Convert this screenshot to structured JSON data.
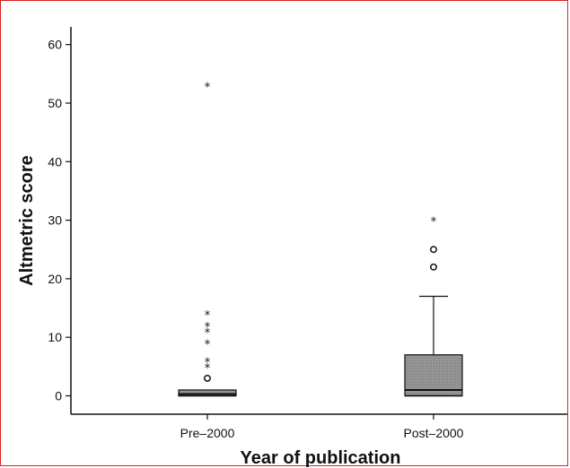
{
  "chart_data": {
    "type": "boxplot",
    "xlabel": "Year of publication",
    "ylabel": "Altmetric score",
    "ylim": [
      -3,
      63
    ],
    "yticks": [
      0,
      10,
      20,
      30,
      40,
      50,
      60
    ],
    "categories": [
      "Pre–2000",
      "Post–2000"
    ],
    "boxes": [
      {
        "name": "Pre–2000",
        "min": 0,
        "q1": 0,
        "median": 0.3,
        "q3": 1,
        "max": 1,
        "outliers": [
          3
        ],
        "extremes": [
          5,
          6,
          9,
          11,
          12,
          14,
          53
        ]
      },
      {
        "name": "Post–2000",
        "min": 0,
        "q1": 0,
        "median": 1,
        "q3": 7,
        "max": 17,
        "outliers": [
          22,
          25
        ],
        "extremes": [
          30
        ]
      }
    ],
    "box_color": "#8f8f8f",
    "box_pattern": "dotted",
    "frame_color": "#e02020"
  }
}
